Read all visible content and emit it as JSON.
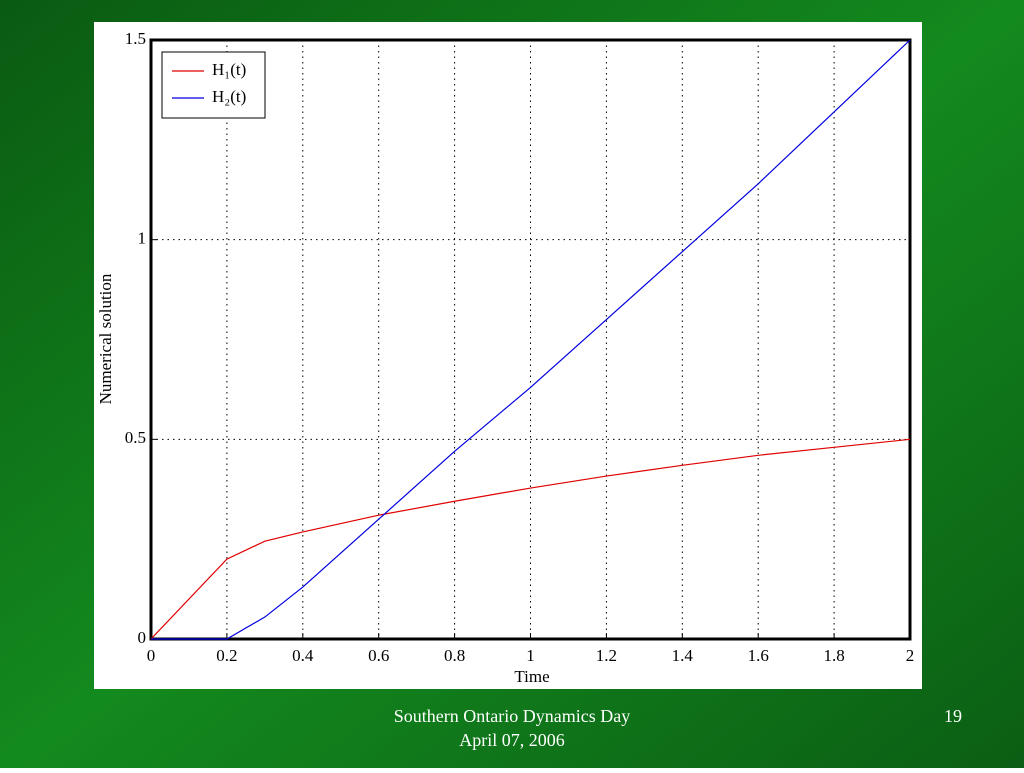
{
  "chart_data": {
    "type": "line",
    "x": [
      0,
      0.2,
      0.3,
      0.4,
      0.6,
      0.8,
      1,
      1.2,
      1.4,
      1.6,
      1.8,
      2
    ],
    "series": [
      {
        "name": "H₁(t)",
        "color": "#e00000",
        "values": [
          0,
          0.2,
          0.245,
          0.268,
          0.31,
          0.345,
          0.378,
          0.408,
          0.435,
          0.46,
          0.48,
          0.5
        ]
      },
      {
        "name": "H₂(t)",
        "color": "#0000e0",
        "values": [
          0,
          0,
          0.055,
          0.13,
          0.3,
          0.47,
          0.63,
          0.8,
          0.97,
          1.14,
          1.32,
          1.5
        ]
      }
    ],
    "xlabel": "Time",
    "ylabel": "Numerical solution",
    "xlim": [
      0,
      2
    ],
    "ylim": [
      0,
      1.5
    ],
    "xticks": [
      0,
      0.2,
      0.4,
      0.6,
      0.8,
      1,
      1.2,
      1.4,
      1.6,
      1.8,
      2
    ],
    "yticks": [
      0,
      0.5,
      1,
      1.5
    ],
    "grid": true,
    "legend": "upper left"
  },
  "footer": {
    "lines": [
      "Southern Ontario Dynamics Day",
      "April 07, 2006"
    ],
    "page": "19"
  }
}
